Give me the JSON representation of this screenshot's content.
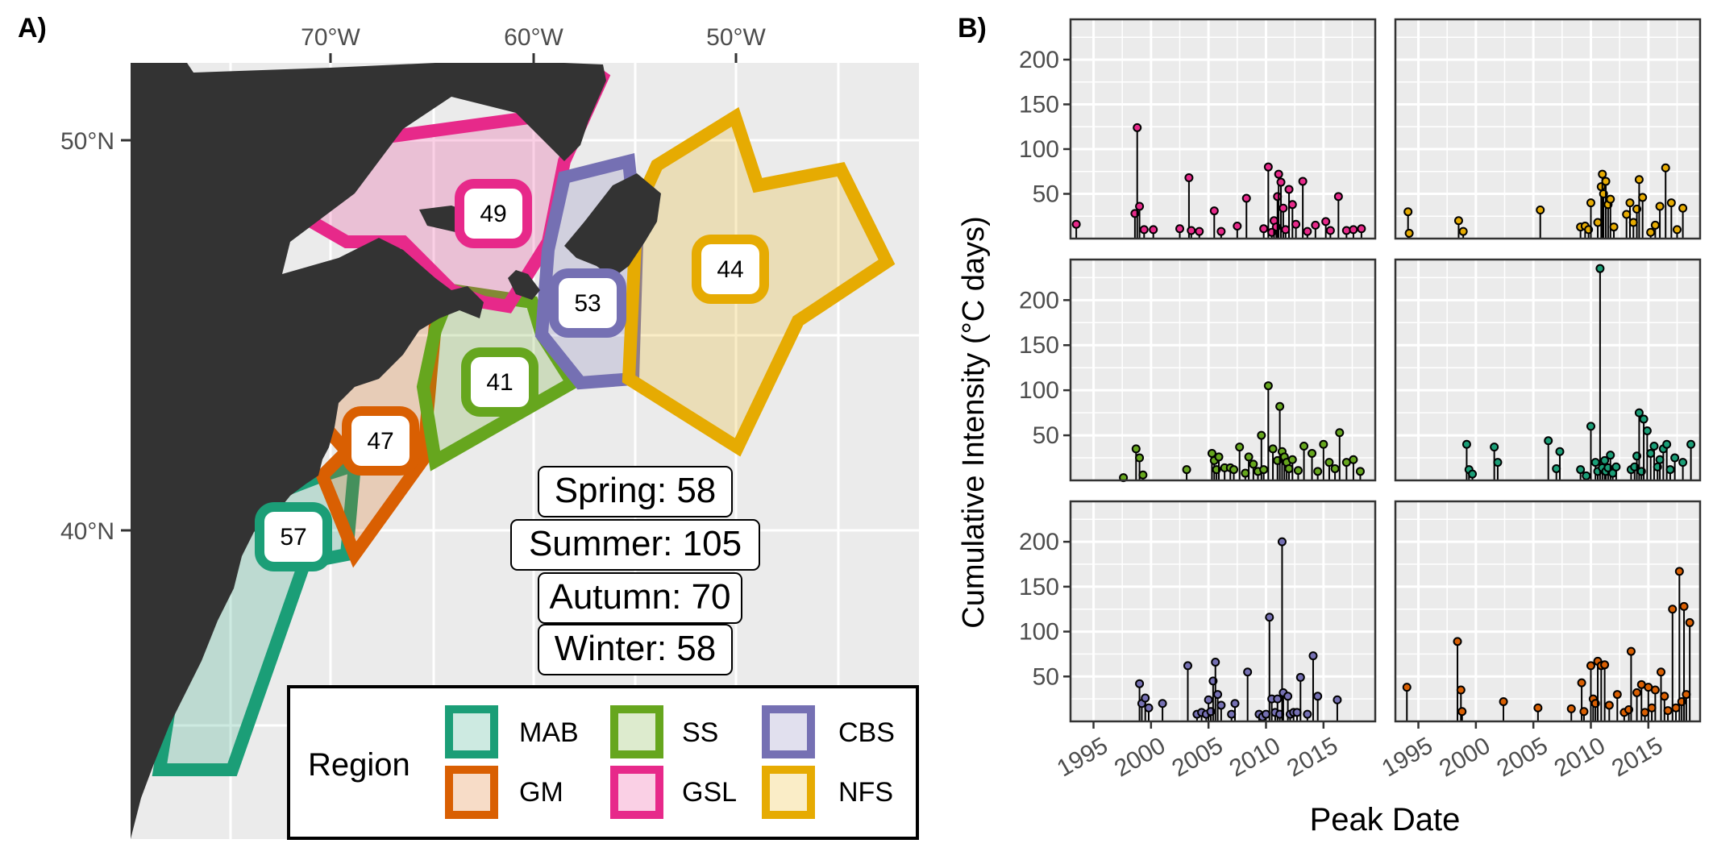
{
  "panel_labels": {
    "a": "A)",
    "b": "B)"
  },
  "map": {
    "lon_ticks": [
      "70°W",
      "60°W",
      "50°W"
    ],
    "lat_ticks": [
      "50°N",
      "40°N"
    ],
    "regions": [
      {
        "code": "MAB",
        "count": "57",
        "color": "#1b9e77"
      },
      {
        "code": "GM",
        "count": "47",
        "color": "#d95f02"
      },
      {
        "code": "SS",
        "count": "41",
        "color": "#66a61e"
      },
      {
        "code": "GSL",
        "count": "49",
        "color": "#e7298a"
      },
      {
        "code": "CBS",
        "count": "53",
        "color": "#7570b3"
      },
      {
        "code": "NFS",
        "count": "44",
        "color": "#e6ab02"
      }
    ],
    "seasons": [
      "Spring: 58",
      "Summer: 105",
      "Autumn: 70",
      "Winter: 58"
    ],
    "legend_title": "Region"
  },
  "chart_data": {
    "type": "scatter",
    "subtype": "lollipop small multiples",
    "xlabel": "Peak Date",
    "ylabel": "Cumulative Intensity (°C days)",
    "xlim": [
      1993,
      2019.5
    ],
    "ylim": [
      0,
      245
    ],
    "x_ticks": [
      "1995",
      "2000",
      "2005",
      "2010",
      "2015"
    ],
    "y_ticks": [
      "50",
      "100",
      "150",
      "200"
    ],
    "panels": [
      {
        "region": "GSL",
        "color": "#e7298a",
        "x": [
          1993.5,
          1998.6,
          1998.8,
          1999.0,
          1999.4,
          2000.2,
          2002.5,
          2003.3,
          2003.5,
          2004.2,
          2005.5,
          2006.1,
          2007.5,
          2008.3,
          2009.8,
          2010.2,
          2010.5,
          2010.7,
          2010.9,
          2011.0,
          2011.1,
          2011.3,
          2011.5,
          2011.7,
          2012.0,
          2012.3,
          2012.6,
          2013.2,
          2013.6,
          2014.3,
          2015.2,
          2015.6,
          2016.3,
          2017.0,
          2017.6,
          2018.3
        ],
        "y": [
          16,
          28,
          124,
          36,
          10,
          10,
          11,
          68,
          9,
          8,
          31,
          8,
          14,
          45,
          11,
          80,
          7,
          20,
          13,
          47,
          72,
          63,
          34,
          10,
          55,
          38,
          16,
          64,
          8,
          15,
          19,
          9,
          47,
          9,
          10,
          11
        ]
      },
      {
        "region": "NFS",
        "color": "#e6ab02",
        "x": [
          1994.1,
          1994.2,
          1998.5,
          1998.9,
          2005.6,
          2009.1,
          2009.5,
          2009.8,
          2010.0,
          2010.6,
          2010.9,
          2011.0,
          2011.1,
          2011.3,
          2011.5,
          2011.7,
          2012.0,
          2013.1,
          2013.4,
          2013.7,
          2014.0,
          2014.2,
          2014.5,
          2015.2,
          2015.6,
          2016.0,
          2016.5,
          2017.0,
          2017.5,
          2018.0
        ],
        "y": [
          30,
          6,
          20,
          8,
          32,
          13,
          14,
          10,
          40,
          18,
          58,
          72,
          50,
          64,
          38,
          44,
          13,
          27,
          40,
          18,
          33,
          66,
          46,
          7,
          15,
          36,
          79,
          40,
          10,
          34
        ]
      },
      {
        "region": "SS",
        "color": "#66a61e",
        "x": [
          1997.6,
          1998.7,
          1999.0,
          1999.3,
          2003.1,
          2005.3,
          2005.5,
          2005.7,
          2005.9,
          2006.4,
          2006.9,
          2007.2,
          2007.7,
          2008.2,
          2008.5,
          2008.9,
          2009.3,
          2009.6,
          2009.8,
          2010.2,
          2010.6,
          2011.0,
          2011.2,
          2011.4,
          2011.6,
          2011.8,
          2012.0,
          2012.3,
          2012.8,
          2013.3,
          2014.0,
          2014.5,
          2015.0,
          2015.5,
          2016.0,
          2016.4,
          2017.0,
          2017.6,
          2018.2
        ],
        "y": [
          3,
          35,
          25,
          6,
          12,
          30,
          22,
          12,
          26,
          14,
          14,
          12,
          37,
          8,
          26,
          18,
          10,
          50,
          12,
          105,
          35,
          22,
          82,
          32,
          26,
          20,
          13,
          23,
          11,
          38,
          30,
          10,
          40,
          20,
          13,
          53,
          20,
          23,
          10
        ]
      },
      {
        "region": "MAB",
        "color": "#1b9e77",
        "x": [
          1999.2,
          1999.4,
          1999.7,
          2001.6,
          2001.9,
          2006.3,
          2007.0,
          2007.3,
          2009.1,
          2009.6,
          2010.0,
          2010.4,
          2010.6,
          2010.8,
          2011.0,
          2011.2,
          2011.3,
          2011.5,
          2011.7,
          2011.9,
          2012.2,
          2013.5,
          2013.8,
          2014.0,
          2014.2,
          2014.4,
          2014.6,
          2014.9,
          2015.2,
          2015.5,
          2015.8,
          2016.0,
          2016.3,
          2016.6,
          2016.9,
          2017.3,
          2018.0,
          2018.7
        ],
        "y": [
          40,
          12,
          7,
          37,
          20,
          44,
          13,
          32,
          12,
          5,
          60,
          20,
          10,
          235,
          14,
          22,
          10,
          14,
          28,
          8,
          15,
          12,
          15,
          27,
          75,
          10,
          68,
          55,
          30,
          38,
          15,
          23,
          35,
          40,
          12,
          25,
          20,
          40
        ]
      },
      {
        "region": "CBS",
        "color": "#7570b3",
        "x": [
          1999.0,
          1999.2,
          1999.5,
          1999.8,
          2001.0,
          2003.2,
          2004.0,
          2004.4,
          2004.8,
          2005.0,
          2005.2,
          2005.4,
          2005.6,
          2005.8,
          2006.1,
          2007.0,
          2007.3,
          2008.4,
          2009.4,
          2009.7,
          2010.0,
          2010.3,
          2010.5,
          2010.8,
          2011.0,
          2011.2,
          2011.4,
          2011.5,
          2011.9,
          2012.1,
          2012.4,
          2012.7,
          2013.0,
          2013.6,
          2014.1,
          2014.5,
          2016.2
        ],
        "y": [
          42,
          20,
          26,
          15,
          20,
          62,
          8,
          10,
          8,
          24,
          11,
          45,
          66,
          30,
          18,
          8,
          20,
          55,
          8,
          5,
          8,
          116,
          25,
          10,
          25,
          8,
          200,
          32,
          28,
          8,
          10,
          10,
          49,
          8,
          73,
          28,
          24
        ]
      },
      {
        "region": "GM",
        "color": "#d95f02",
        "x": [
          1994.0,
          1998.4,
          1998.7,
          1998.8,
          2002.4,
          2005.4,
          2008.3,
          2009.2,
          2009.4,
          2010.0,
          2010.2,
          2010.4,
          2010.6,
          2010.9,
          2011.2,
          2011.6,
          2012.3,
          2012.9,
          2013.3,
          2013.5,
          2014.0,
          2014.4,
          2014.7,
          2015.0,
          2015.3,
          2015.6,
          2016.1,
          2016.4,
          2016.7,
          2017.1,
          2017.4,
          2017.7,
          2017.9,
          2018.1,
          2018.3,
          2018.6
        ],
        "y": [
          38,
          89,
          35,
          11,
          22,
          15,
          14,
          43,
          11,
          62,
          25,
          20,
          67,
          62,
          63,
          18,
          30,
          10,
          13,
          78,
          32,
          41,
          10,
          38,
          15,
          35,
          55,
          28,
          12,
          125,
          15,
          167,
          22,
          128,
          30,
          110
        ]
      }
    ]
  }
}
